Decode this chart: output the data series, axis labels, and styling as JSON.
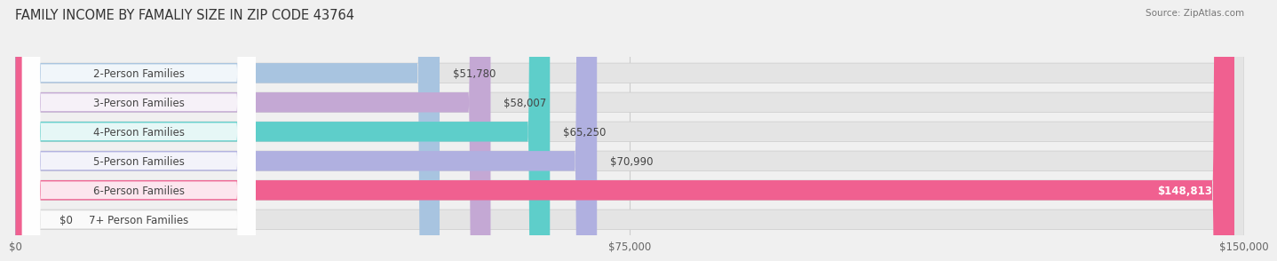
{
  "title": "FAMILY INCOME BY FAMALIY SIZE IN ZIP CODE 43764",
  "source": "Source: ZipAtlas.com",
  "categories": [
    "2-Person Families",
    "3-Person Families",
    "4-Person Families",
    "5-Person Families",
    "6-Person Families",
    "7+ Person Families"
  ],
  "values": [
    51780,
    58007,
    65250,
    70990,
    148813,
    0
  ],
  "labels": [
    "$51,780",
    "$58,007",
    "$65,250",
    "$70,990",
    "$148,813",
    "$0"
  ],
  "bar_colors": [
    "#a8c4e0",
    "#c4a8d4",
    "#5ececa",
    "#b0b0e0",
    "#f06090",
    "#f5d5b0"
  ],
  "background_color": "#f0f0f0",
  "bar_bg_color": "#e4e4e4",
  "xlim": [
    0,
    150000
  ],
  "xticks": [
    0,
    75000,
    150000
  ],
  "xtick_labels": [
    "$0",
    "$75,000",
    "$150,000"
  ],
  "title_fontsize": 10.5,
  "label_fontsize": 8.5,
  "tick_fontsize": 8.5,
  "bar_height": 0.68,
  "value_label_white": [
    4
  ],
  "grid_color": "#cccccc",
  "text_color": "#444444",
  "source_color": "#777777"
}
